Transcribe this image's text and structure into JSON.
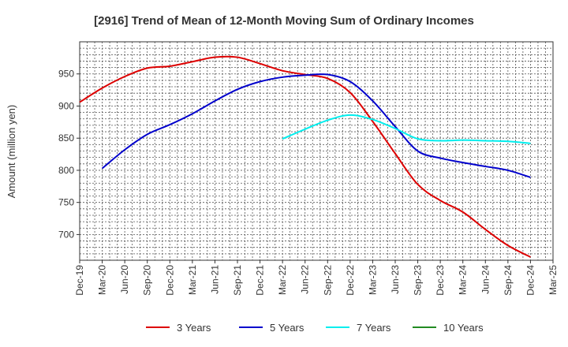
{
  "chart_data": {
    "type": "line",
    "title": "[2916]  Trend of Mean of 12-Month Moving Sum of Ordinary Incomes",
    "ylabel": "Amount (million yen)",
    "xlabel": "",
    "ylim": [
      660,
      1000
    ],
    "yticks": [
      700,
      750,
      800,
      850,
      900,
      950
    ],
    "categories": [
      "Dec-19",
      "Mar-20",
      "Jun-20",
      "Sep-20",
      "Dec-20",
      "Mar-21",
      "Jun-21",
      "Sep-21",
      "Dec-21",
      "Mar-22",
      "Jun-22",
      "Sep-22",
      "Dec-22",
      "Mar-23",
      "Jun-23",
      "Sep-23",
      "Dec-23",
      "Mar-24",
      "Jun-24",
      "Sep-24",
      "Dec-24",
      "Mar-25"
    ],
    "grid": true,
    "legend_position": "bottom",
    "series": [
      {
        "name": "3 Years",
        "color": "#dd0000",
        "values": [
          906,
          928,
          946,
          959,
          962,
          969,
          976,
          976,
          966,
          955,
          949,
          943,
          921,
          876,
          826,
          778,
          753,
          735,
          708,
          683,
          665,
          null
        ]
      },
      {
        "name": "5 Years",
        "color": "#0000cc",
        "values": [
          null,
          803,
          832,
          856,
          871,
          888,
          908,
          926,
          938,
          945,
          948,
          949,
          938,
          908,
          868,
          830,
          819,
          812,
          806,
          800,
          789,
          null
        ]
      },
      {
        "name": "7 Years",
        "color": "#00eeee",
        "values": [
          null,
          null,
          null,
          null,
          null,
          null,
          null,
          null,
          null,
          849,
          864,
          878,
          886,
          879,
          865,
          849,
          846,
          847,
          846,
          845,
          842,
          null
        ]
      },
      {
        "name": "10 Years",
        "color": "#228b22",
        "values": [
          null,
          null,
          null,
          null,
          null,
          null,
          null,
          null,
          null,
          null,
          null,
          null,
          null,
          null,
          null,
          null,
          null,
          null,
          null,
          null,
          null,
          null
        ]
      }
    ]
  }
}
